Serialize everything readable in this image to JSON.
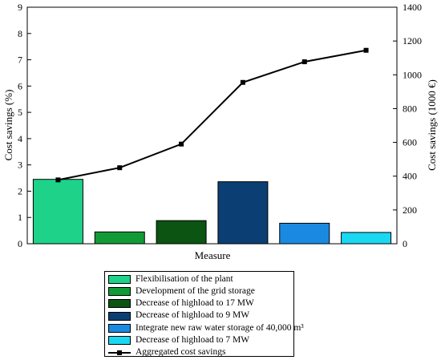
{
  "chart_data": {
    "type": "bar",
    "xlabel": "Measure",
    "ylabel_left": "Cost savings (%)",
    "ylabel_right": "Cost savings (1000 €)",
    "ylim_left": [
      0,
      9
    ],
    "ylim_right": [
      0,
      1400
    ],
    "yticks_left": [
      "0",
      "1",
      "2",
      "3",
      "4",
      "5",
      "6",
      "7",
      "8",
      "9"
    ],
    "yticks_right": [
      "0",
      "200",
      "400",
      "600",
      "800",
      "1000",
      "1200",
      "1400"
    ],
    "grid": false,
    "legend_position": "bottom",
    "bars": [
      {
        "name": "Flexibilisation of the plant",
        "value": 2.45,
        "color": "#1ed28a"
      },
      {
        "name": "Development of the grid storage",
        "value": 0.45,
        "color": "#129a36"
      },
      {
        "name": "Decrease of highload to 17 MW",
        "value": 0.88,
        "color": "#0b5412"
      },
      {
        "name": "Decrease of highload to 9 MW",
        "value": 2.36,
        "color": "#0b3f73"
      },
      {
        "name": "Integrate new raw water storage of 40,000 m³",
        "value": 0.78,
        "color": "#1a8ae0"
      },
      {
        "name": "Decrease of highload to 7 MW",
        "value": 0.43,
        "color": "#1ad8f2"
      }
    ],
    "line_series": {
      "name": "Aggregated cost savings",
      "axis": "right",
      "values": [
        378,
        450,
        590,
        955,
        1077,
        1145
      ],
      "color": "#000000"
    }
  }
}
